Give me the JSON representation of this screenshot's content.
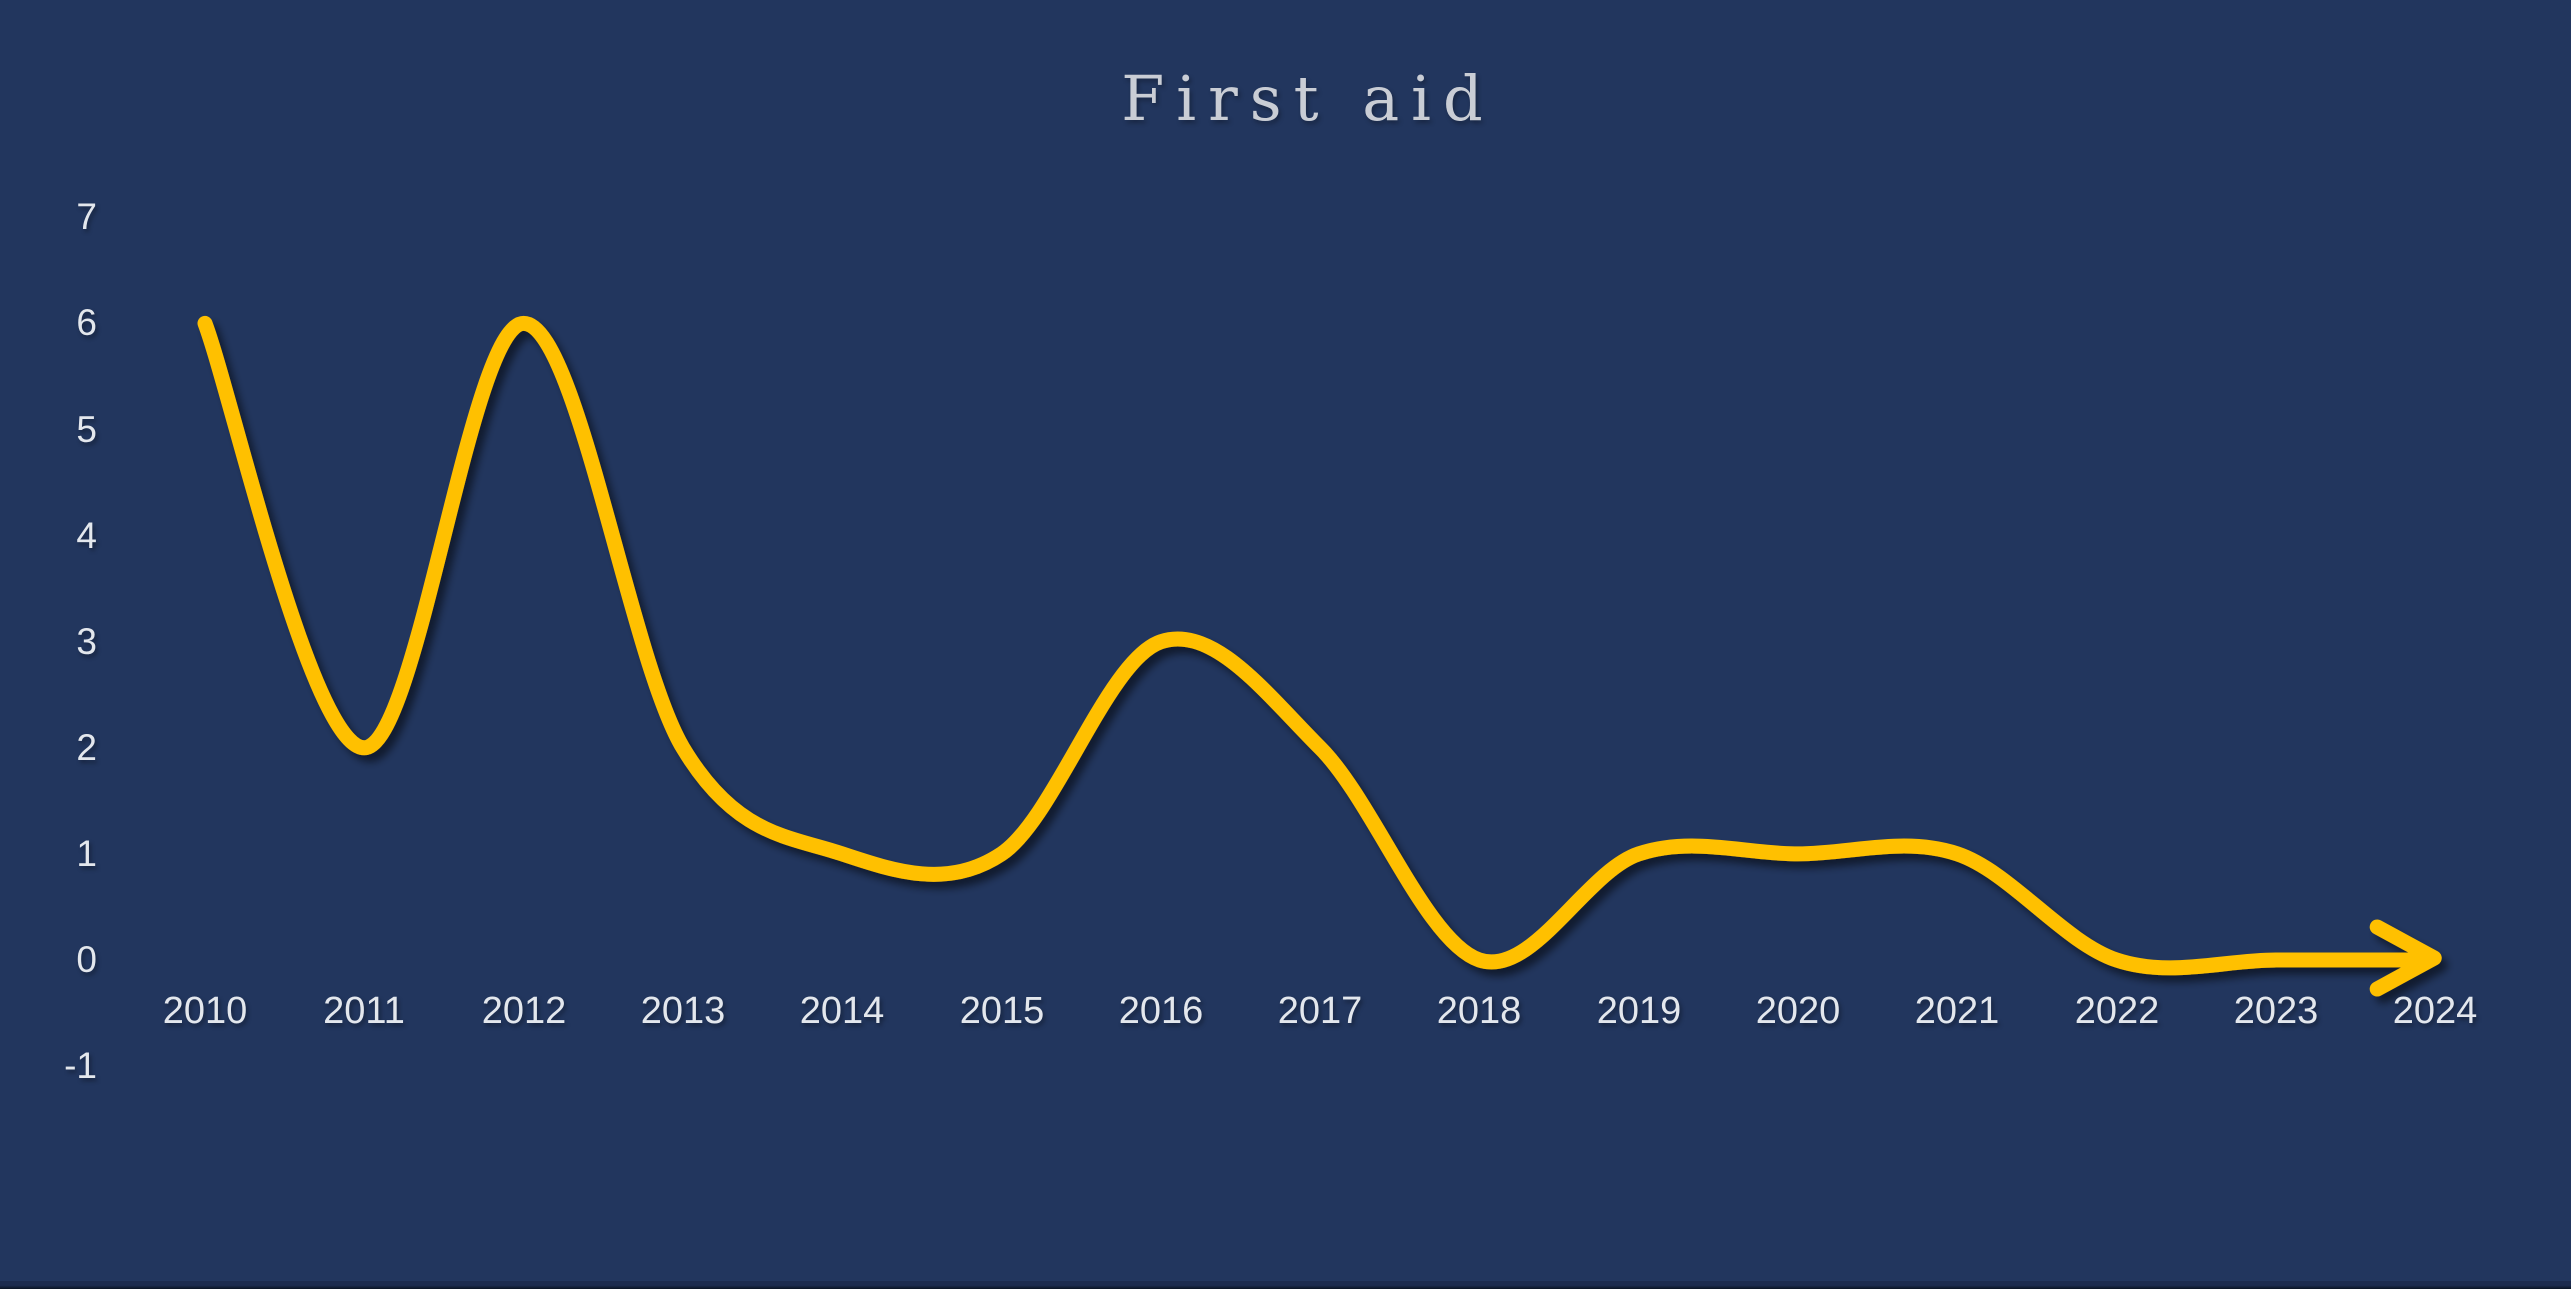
{
  "chart_data": {
    "type": "line",
    "title": "First aid",
    "x": [
      2010,
      2011,
      2012,
      2013,
      2014,
      2015,
      2016,
      2017,
      2018,
      2019,
      2020,
      2021,
      2022,
      2023,
      2024
    ],
    "series": [
      {
        "name": "First aid",
        "values": [
          6,
          2,
          6,
          2,
          1,
          1,
          3,
          2,
          0,
          1,
          1,
          1,
          0,
          0,
          0
        ]
      }
    ],
    "xlabel": "",
    "ylabel": "",
    "y_ticks": [
      7,
      6,
      5,
      4,
      3,
      2,
      1,
      0,
      -1
    ],
    "ylim": [
      -1,
      7
    ],
    "grid": false,
    "legend": false,
    "line_style": "smooth",
    "arrow_end": true
  },
  "colors": {
    "background": "#22365E",
    "line": "#FFC000",
    "title_text": "#C9CDD5",
    "tick_text": "#E3E7ED",
    "line_shadow": "rgba(0,0,0,0.5)",
    "bottom_strip_top": "#1C2B4E",
    "bottom_strip_bottom": "#0A1222"
  }
}
